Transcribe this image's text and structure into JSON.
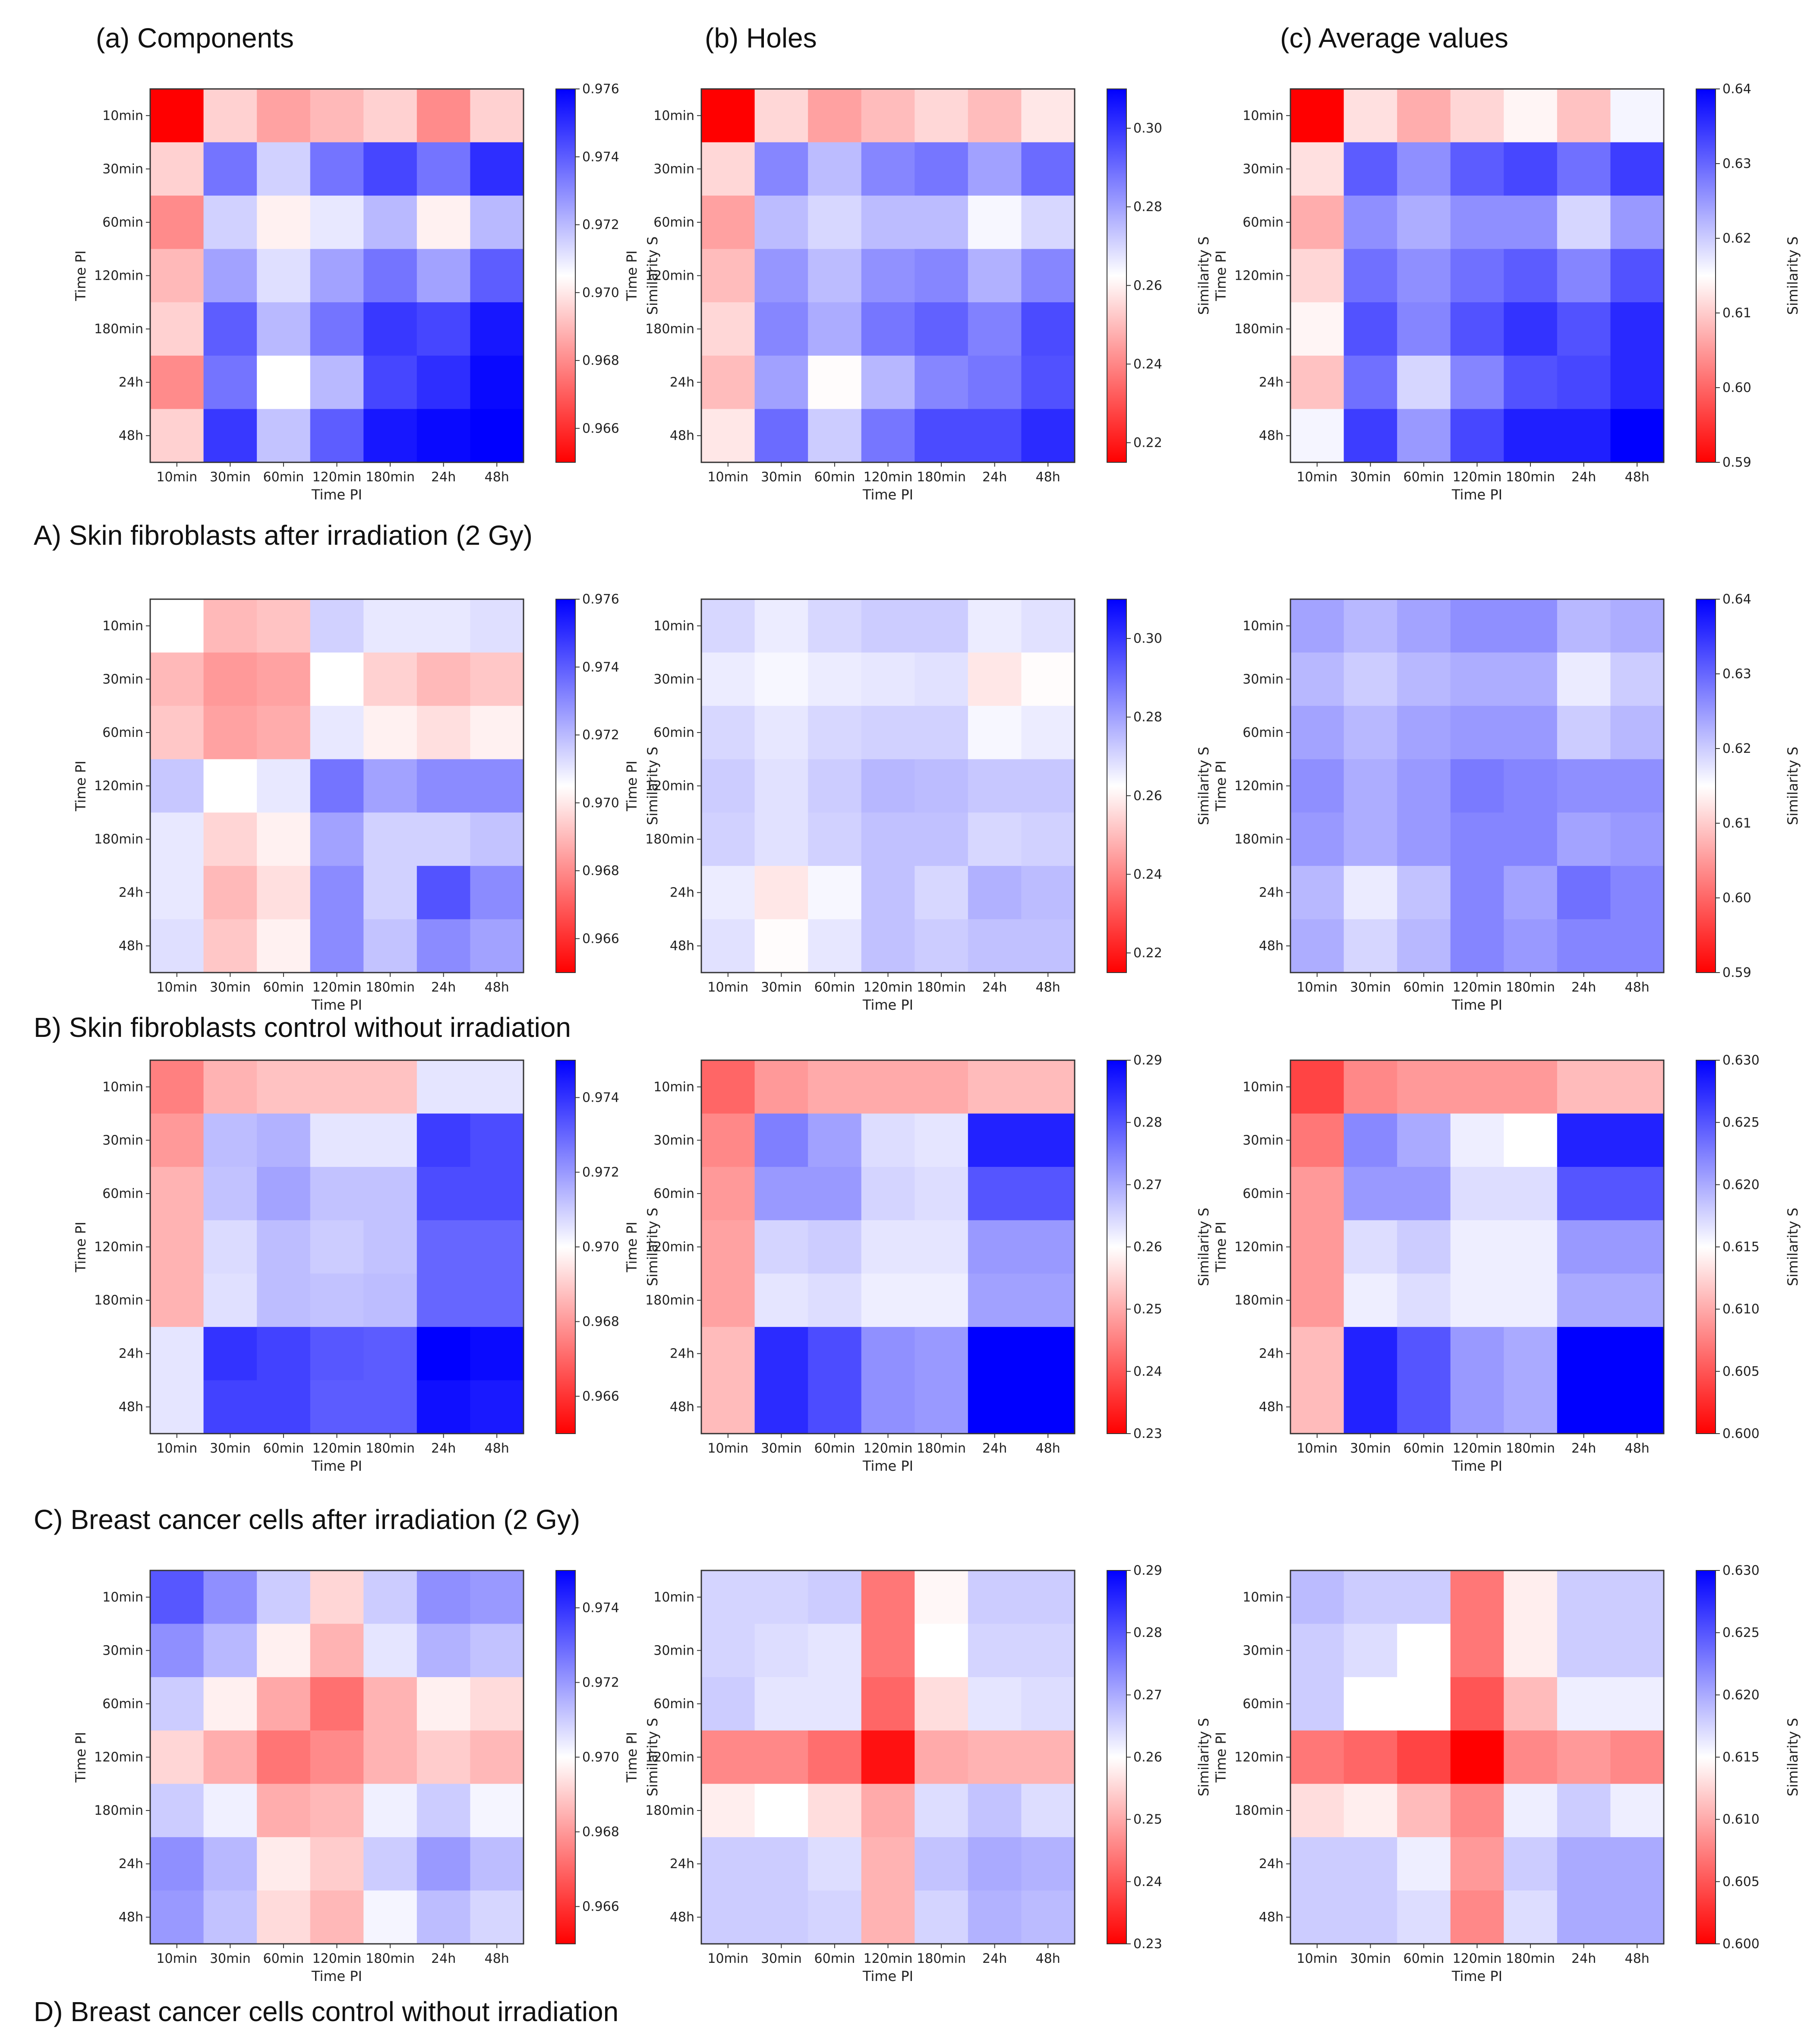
{
  "figure": {
    "column_titles": [
      "(a) Components",
      "(b) Holes",
      "(c) Average values"
    ],
    "row_titles": [
      "A) Skin fibroblasts after irradiation (2 Gy)",
      "B) Skin fibroblasts control without irradiation",
      "C) Breast cancer cells after irradiation (2 Gy)",
      "D) Breast cancer cells control without irradiation"
    ]
  },
  "chart_data": [
    {
      "type": "heatmap",
      "row": "A",
      "column": "Components",
      "xlabel": "Time PI",
      "ylabel": "Time PI",
      "colorbar_label": "Similarity S",
      "categories": [
        "10min",
        "30min",
        "60min",
        "120min",
        "180min",
        "24h",
        "48h"
      ],
      "vmin": 0.965,
      "vmax": 0.976,
      "colorbar_ticks": [
        "0.966",
        "0.968",
        "0.970",
        "0.972",
        "0.974",
        "0.976"
      ],
      "values": [
        [
          0.965,
          0.9695,
          0.9685,
          0.969,
          0.9695,
          0.968,
          0.9695
        ],
        [
          0.9695,
          0.9735,
          0.9715,
          0.9735,
          0.9745,
          0.9735,
          0.975
        ],
        [
          0.968,
          0.9715,
          0.9702,
          0.971,
          0.972,
          0.9702,
          0.972
        ],
        [
          0.969,
          0.9725,
          0.9712,
          0.9725,
          0.9735,
          0.9725,
          0.974
        ],
        [
          0.9695,
          0.974,
          0.972,
          0.9735,
          0.9748,
          0.9745,
          0.9755
        ],
        [
          0.968,
          0.9735,
          0.9705,
          0.972,
          0.9745,
          0.975,
          0.9758
        ],
        [
          0.9695,
          0.9748,
          0.9718,
          0.974,
          0.9755,
          0.9758,
          0.976
        ]
      ]
    },
    {
      "type": "heatmap",
      "row": "A",
      "column": "Holes",
      "xlabel": "Time PI",
      "ylabel": "Time PI",
      "colorbar_label": "Similarity S",
      "categories": [
        "10min",
        "30min",
        "60min",
        "120min",
        "180min",
        "24h",
        "48h"
      ],
      "vmin": 0.215,
      "vmax": 0.31,
      "colorbar_ticks": [
        "0.22",
        "0.24",
        "0.26",
        "0.28",
        "0.30"
      ],
      "values": [
        [
          0.215,
          0.255,
          0.245,
          0.25,
          0.255,
          0.25,
          0.258
        ],
        [
          0.255,
          0.285,
          0.275,
          0.285,
          0.288,
          0.28,
          0.29
        ],
        [
          0.245,
          0.275,
          0.27,
          0.275,
          0.275,
          0.264,
          0.27
        ],
        [
          0.25,
          0.282,
          0.275,
          0.283,
          0.285,
          0.277,
          0.285
        ],
        [
          0.255,
          0.285,
          0.278,
          0.288,
          0.292,
          0.286,
          0.296
        ],
        [
          0.25,
          0.28,
          0.262,
          0.276,
          0.285,
          0.288,
          0.295
        ],
        [
          0.258,
          0.29,
          0.272,
          0.288,
          0.296,
          0.296,
          0.302
        ]
      ]
    },
    {
      "type": "heatmap",
      "row": "A",
      "column": "Average values",
      "xlabel": "Time PI",
      "ylabel": "Time PI",
      "colorbar_label": "Similarity S",
      "categories": [
        "10min",
        "30min",
        "60min",
        "120min",
        "180min",
        "24h",
        "48h"
      ],
      "vmin": 0.59,
      "vmax": 0.64,
      "colorbar_ticks": [
        "0.59",
        "0.60",
        "0.61",
        "0.62",
        "0.63",
        "0.64"
      ],
      "values": [
        [
          0.59,
          0.612,
          0.607,
          0.611,
          0.614,
          0.609,
          0.616
        ],
        [
          0.612,
          0.631,
          0.626,
          0.631,
          0.633,
          0.629,
          0.634
        ],
        [
          0.607,
          0.626,
          0.623,
          0.626,
          0.626,
          0.619,
          0.625
        ],
        [
          0.611,
          0.629,
          0.626,
          0.629,
          0.631,
          0.627,
          0.632
        ],
        [
          0.614,
          0.632,
          0.627,
          0.632,
          0.635,
          0.632,
          0.636
        ],
        [
          0.609,
          0.629,
          0.619,
          0.627,
          0.632,
          0.633,
          0.636
        ],
        [
          0.616,
          0.634,
          0.625,
          0.633,
          0.637,
          0.637,
          0.64
        ]
      ]
    },
    {
      "type": "heatmap",
      "row": "B",
      "column": "Components",
      "xlabel": "Time PI",
      "ylabel": "Time PI",
      "colorbar_label": "Similarity S",
      "categories": [
        "10min",
        "30min",
        "60min",
        "120min",
        "180min",
        "24h",
        "48h"
      ],
      "vmin": 0.965,
      "vmax": 0.976,
      "colorbar_ticks": [
        "0.966",
        "0.968",
        "0.970",
        "0.972",
        "0.974",
        "0.976"
      ],
      "values": [
        [
          0.9705,
          0.969,
          0.9692,
          0.9715,
          0.971,
          0.971,
          0.9712
        ],
        [
          0.969,
          0.9683,
          0.9685,
          0.9705,
          0.9695,
          0.969,
          0.9693
        ],
        [
          0.9693,
          0.9685,
          0.9687,
          0.971,
          0.9702,
          0.9698,
          0.9702
        ],
        [
          0.9717,
          0.9705,
          0.971,
          0.9735,
          0.9725,
          0.973,
          0.973
        ],
        [
          0.971,
          0.9696,
          0.9702,
          0.9725,
          0.9715,
          0.9715,
          0.9718
        ],
        [
          0.971,
          0.969,
          0.9698,
          0.973,
          0.9715,
          0.9742,
          0.973
        ],
        [
          0.9712,
          0.9693,
          0.9702,
          0.973,
          0.9718,
          0.973,
          0.9725
        ]
      ]
    },
    {
      "type": "heatmap",
      "row": "B",
      "column": "Holes",
      "xlabel": "Time PI",
      "ylabel": "Time PI",
      "colorbar_label": "Similarity S",
      "categories": [
        "10min",
        "30min",
        "60min",
        "120min",
        "180min",
        "24h",
        "48h"
      ],
      "vmin": 0.215,
      "vmax": 0.31,
      "colorbar_ticks": [
        "0.22",
        "0.24",
        "0.26",
        "0.28",
        "0.30"
      ],
      "values": [
        [
          0.27,
          0.266,
          0.27,
          0.272,
          0.272,
          0.266,
          0.268
        ],
        [
          0.266,
          0.264,
          0.266,
          0.267,
          0.268,
          0.258,
          0.262
        ],
        [
          0.27,
          0.267,
          0.27,
          0.271,
          0.271,
          0.264,
          0.266
        ],
        [
          0.272,
          0.268,
          0.272,
          0.276,
          0.275,
          0.273,
          0.273
        ],
        [
          0.271,
          0.268,
          0.271,
          0.274,
          0.274,
          0.27,
          0.271
        ],
        [
          0.266,
          0.258,
          0.264,
          0.274,
          0.27,
          0.277,
          0.275
        ],
        [
          0.268,
          0.262,
          0.267,
          0.274,
          0.272,
          0.274,
          0.274
        ]
      ]
    },
    {
      "type": "heatmap",
      "row": "B",
      "column": "Average values",
      "xlabel": "Time PI",
      "ylabel": "Time PI",
      "colorbar_label": "Similarity S",
      "categories": [
        "10min",
        "30min",
        "60min",
        "120min",
        "180min",
        "24h",
        "48h"
      ],
      "vmin": 0.59,
      "vmax": 0.64,
      "colorbar_ticks": [
        "0.59",
        "0.60",
        "0.61",
        "0.62",
        "0.63",
        "0.64"
      ],
      "values": [
        [
          0.624,
          0.622,
          0.624,
          0.626,
          0.626,
          0.622,
          0.623
        ],
        [
          0.622,
          0.62,
          0.622,
          0.623,
          0.623,
          0.617,
          0.62
        ],
        [
          0.624,
          0.622,
          0.624,
          0.625,
          0.625,
          0.62,
          0.622
        ],
        [
          0.626,
          0.623,
          0.625,
          0.628,
          0.627,
          0.626,
          0.626
        ],
        [
          0.625,
          0.623,
          0.625,
          0.627,
          0.627,
          0.624,
          0.625
        ],
        [
          0.622,
          0.617,
          0.621,
          0.627,
          0.624,
          0.629,
          0.627
        ],
        [
          0.623,
          0.619,
          0.622,
          0.627,
          0.625,
          0.627,
          0.627
        ]
      ]
    },
    {
      "type": "heatmap",
      "row": "C",
      "column": "Components",
      "xlabel": "Time PI",
      "ylabel": "Time PI",
      "colorbar_label": "Similarity S",
      "categories": [
        "10min",
        "30min",
        "60min",
        "120min",
        "180min",
        "24h",
        "48h"
      ],
      "vmin": 0.965,
      "vmax": 0.975,
      "colorbar_ticks": [
        "0.966",
        "0.968",
        "0.970",
        "0.972",
        "0.974"
      ],
      "values": [
        [
          0.9675,
          0.9685,
          0.9688,
          0.9688,
          0.9688,
          0.9705,
          0.9705
        ],
        [
          0.968,
          0.9713,
          0.9715,
          0.9705,
          0.9705,
          0.9738,
          0.9735
        ],
        [
          0.9685,
          0.9712,
          0.9718,
          0.9712,
          0.9712,
          0.9735,
          0.9735
        ],
        [
          0.9685,
          0.9707,
          0.9713,
          0.971,
          0.9712,
          0.973,
          0.973
        ],
        [
          0.9685,
          0.9706,
          0.9713,
          0.9712,
          0.9713,
          0.973,
          0.973
        ],
        [
          0.9705,
          0.974,
          0.9737,
          0.9733,
          0.9732,
          0.975,
          0.9748
        ],
        [
          0.9705,
          0.9737,
          0.9737,
          0.9732,
          0.9732,
          0.9747,
          0.9745
        ]
      ]
    },
    {
      "type": "heatmap",
      "row": "C",
      "column": "Holes",
      "xlabel": "Time PI",
      "ylabel": "Time PI",
      "colorbar_label": "Similarity S",
      "categories": [
        "10min",
        "30min",
        "60min",
        "120min",
        "180min",
        "24h",
        "48h"
      ],
      "vmin": 0.23,
      "vmax": 0.29,
      "colorbar_ticks": [
        "0.23",
        "0.24",
        "0.25",
        "0.26",
        "0.27",
        "0.28",
        "0.29"
      ],
      "values": [
        [
          0.242,
          0.248,
          0.25,
          0.25,
          0.25,
          0.252,
          0.252
        ],
        [
          0.246,
          0.275,
          0.271,
          0.264,
          0.263,
          0.286,
          0.286
        ],
        [
          0.248,
          0.272,
          0.272,
          0.265,
          0.264,
          0.28,
          0.28
        ],
        [
          0.249,
          0.265,
          0.266,
          0.263,
          0.263,
          0.272,
          0.272
        ],
        [
          0.249,
          0.263,
          0.264,
          0.262,
          0.262,
          0.271,
          0.271
        ],
        [
          0.252,
          0.285,
          0.281,
          0.273,
          0.272,
          0.29,
          0.29
        ],
        [
          0.252,
          0.285,
          0.281,
          0.273,
          0.272,
          0.29,
          0.29
        ]
      ]
    },
    {
      "type": "heatmap",
      "row": "C",
      "column": "Average values",
      "xlabel": "Time PI",
      "ylabel": "Time PI",
      "colorbar_label": "Similarity S",
      "categories": [
        "10min",
        "30min",
        "60min",
        "120min",
        "180min",
        "24h",
        "48h"
      ],
      "vmin": 0.6,
      "vmax": 0.63,
      "colorbar_ticks": [
        "0.600",
        "0.605",
        "0.610",
        "0.615",
        "0.620",
        "0.625",
        "0.630"
      ],
      "values": [
        [
          0.604,
          0.608,
          0.609,
          0.609,
          0.609,
          0.611,
          0.611
        ],
        [
          0.607,
          0.622,
          0.62,
          0.616,
          0.615,
          0.628,
          0.628
        ],
        [
          0.609,
          0.621,
          0.621,
          0.617,
          0.617,
          0.625,
          0.625
        ],
        [
          0.609,
          0.617,
          0.618,
          0.616,
          0.616,
          0.621,
          0.621
        ],
        [
          0.609,
          0.616,
          0.617,
          0.616,
          0.616,
          0.62,
          0.62
        ],
        [
          0.611,
          0.628,
          0.625,
          0.621,
          0.62,
          0.63,
          0.63
        ],
        [
          0.611,
          0.628,
          0.625,
          0.621,
          0.62,
          0.63,
          0.63
        ]
      ]
    },
    {
      "type": "heatmap",
      "row": "D",
      "column": "Components",
      "xlabel": "Time PI",
      "ylabel": "Time PI",
      "colorbar_label": "Similarity S",
      "categories": [
        "10min",
        "30min",
        "60min",
        "120min",
        "180min",
        "24h",
        "48h"
      ],
      "vmin": 0.965,
      "vmax": 0.975,
      "colorbar_ticks": [
        "0.966",
        "0.968",
        "0.970",
        "0.972",
        "0.974"
      ],
      "values": [
        [
          0.9733,
          0.9722,
          0.971,
          0.9692,
          0.971,
          0.9722,
          0.972
        ],
        [
          0.9722,
          0.9714,
          0.9697,
          0.9685,
          0.9705,
          0.9715,
          0.9712
        ],
        [
          0.971,
          0.9697,
          0.9683,
          0.9672,
          0.9685,
          0.9697,
          0.9693
        ],
        [
          0.9692,
          0.9684,
          0.9673,
          0.9677,
          0.9685,
          0.969,
          0.9686
        ],
        [
          0.971,
          0.9703,
          0.9684,
          0.9686,
          0.9703,
          0.971,
          0.9702
        ],
        [
          0.9722,
          0.9714,
          0.9696,
          0.969,
          0.971,
          0.972,
          0.9713
        ],
        [
          0.972,
          0.9712,
          0.9693,
          0.9686,
          0.9702,
          0.9713,
          0.9708
        ]
      ]
    },
    {
      "type": "heatmap",
      "row": "D",
      "column": "Holes",
      "xlabel": "Time PI",
      "ylabel": "Time PI",
      "colorbar_label": "Similarity S",
      "categories": [
        "10min",
        "30min",
        "60min",
        "120min",
        "180min",
        "24h",
        "48h"
      ],
      "vmin": 0.23,
      "vmax": 0.29,
      "colorbar_ticks": [
        "0.23",
        "0.24",
        "0.25",
        "0.26",
        "0.27",
        "0.28",
        "0.29"
      ],
      "values": [
        [
          0.265,
          0.265,
          0.266,
          0.244,
          0.259,
          0.266,
          0.266
        ],
        [
          0.265,
          0.264,
          0.263,
          0.244,
          0.26,
          0.265,
          0.265
        ],
        [
          0.266,
          0.263,
          0.263,
          0.242,
          0.256,
          0.263,
          0.264
        ],
        [
          0.246,
          0.246,
          0.243,
          0.232,
          0.25,
          0.251,
          0.251
        ],
        [
          0.258,
          0.26,
          0.256,
          0.25,
          0.264,
          0.267,
          0.264
        ],
        [
          0.266,
          0.266,
          0.264,
          0.251,
          0.267,
          0.27,
          0.269
        ],
        [
          0.266,
          0.266,
          0.265,
          0.251,
          0.265,
          0.269,
          0.268
        ]
      ]
    },
    {
      "type": "heatmap",
      "row": "D",
      "column": "Average values",
      "xlabel": "Time PI",
      "ylabel": "Time PI",
      "colorbar_label": "Similarity S",
      "categories": [
        "10min",
        "30min",
        "60min",
        "120min",
        "180min",
        "24h",
        "48h"
      ],
      "vmin": 0.6,
      "vmax": 0.63,
      "colorbar_ticks": [
        "0.600",
        "0.605",
        "0.610",
        "0.615",
        "0.620",
        "0.625",
        "0.630"
      ],
      "values": [
        [
          0.619,
          0.618,
          0.618,
          0.607,
          0.614,
          0.618,
          0.618
        ],
        [
          0.618,
          0.617,
          0.615,
          0.607,
          0.614,
          0.618,
          0.618
        ],
        [
          0.618,
          0.615,
          0.615,
          0.605,
          0.611,
          0.616,
          0.616
        ],
        [
          0.607,
          0.606,
          0.604,
          0.6,
          0.608,
          0.609,
          0.608
        ],
        [
          0.613,
          0.614,
          0.611,
          0.608,
          0.616,
          0.618,
          0.616
        ],
        [
          0.618,
          0.618,
          0.616,
          0.609,
          0.618,
          0.62,
          0.62
        ],
        [
          0.618,
          0.618,
          0.617,
          0.608,
          0.617,
          0.62,
          0.62
        ]
      ]
    }
  ]
}
